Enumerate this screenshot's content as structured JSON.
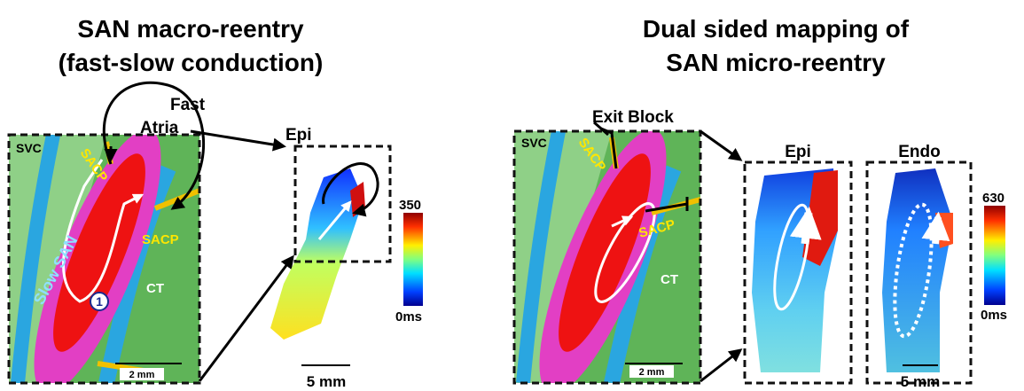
{
  "left_panel": {
    "title": [
      "SAN macro-reentry",
      "(fast-slow conduction)"
    ],
    "fast_atria": [
      "Fast",
      "Atria"
    ],
    "schematic": {
      "svc": "SVC",
      "sacp_top": "SACP",
      "sacp_right": "SACP",
      "slow_san": "Slow SAN",
      "ct": "CT",
      "marker": "1",
      "scale": "2 mm"
    },
    "map": {
      "label": "Epi",
      "colorbar_max": "350",
      "colorbar_min": "0ms",
      "scale": "5 mm"
    }
  },
  "right_panel": {
    "title": [
      "Dual sided mapping of",
      "SAN micro-reentry"
    ],
    "exit_block": "Exit Block",
    "schematic": {
      "svc": "SVC",
      "sacp_top": "SACP",
      "sacp_right": "SACP",
      "ct": "CT",
      "scale": "2 mm"
    },
    "maps": [
      {
        "label": "Epi"
      },
      {
        "label": "Endo"
      }
    ],
    "colorbar_max": "630",
    "colorbar_min": "0ms",
    "scale": "5 mm"
  }
}
